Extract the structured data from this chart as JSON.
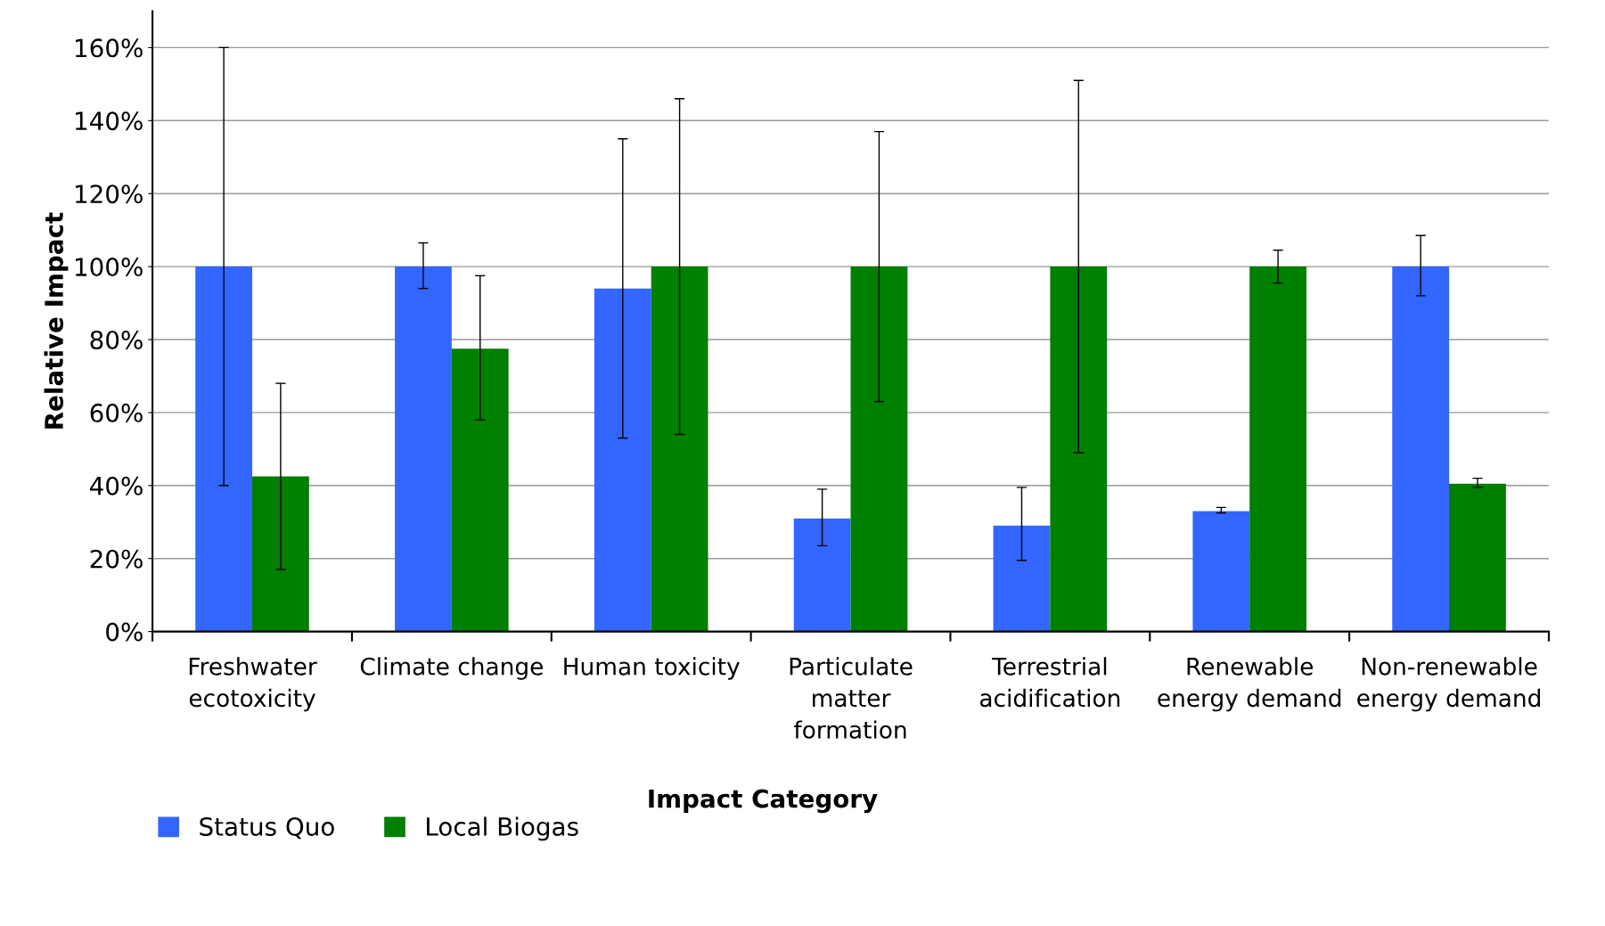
{
  "chart_data": {
    "type": "bar",
    "xlabel": "Impact Category",
    "ylabel": "Relative Impact",
    "categories": [
      "Freshwater ecotoxicity",
      "Climate change",
      "Human toxicity",
      "Particulate matter formation",
      "Terrestrial acidification",
      "Renewable energy demand",
      "Non-renewable energy demand"
    ],
    "series": [
      {
        "name": "Status Quo",
        "color": "#3366ff",
        "values": [
          100,
          100,
          94,
          31,
          29,
          33,
          100
        ],
        "errors": [
          [
            40,
            160
          ],
          [
            94,
            106.5
          ],
          [
            53,
            135
          ],
          [
            23.5,
            39
          ],
          [
            19.5,
            39.5
          ],
          [
            32.5,
            34
          ],
          [
            92,
            108.5
          ]
        ]
      },
      {
        "name": "Local Biogas",
        "color": "#007f00",
        "values": [
          42.5,
          77.5,
          100,
          100,
          100,
          100,
          40.5
        ],
        "errors": [
          [
            17,
            68
          ],
          [
            58,
            97.5
          ],
          [
            54,
            146
          ],
          [
            63,
            137
          ],
          [
            49,
            151
          ],
          [
            95.5,
            104.5
          ],
          [
            39.5,
            42
          ]
        ]
      }
    ],
    "ylim": [
      0,
      170
    ],
    "yticks": [
      {
        "value": 0,
        "label": "0%"
      },
      {
        "value": 20,
        "label": "20%"
      },
      {
        "value": 40,
        "label": "40%"
      },
      {
        "value": 60,
        "label": "60%"
      },
      {
        "value": 80,
        "label": "80%"
      },
      {
        "value": 100,
        "label": "100%"
      },
      {
        "value": 120,
        "label": "120%"
      },
      {
        "value": 140,
        "label": "140%"
      },
      {
        "value": 160,
        "label": "160%"
      }
    ],
    "grid": "y",
    "legend": "bottom left"
  }
}
